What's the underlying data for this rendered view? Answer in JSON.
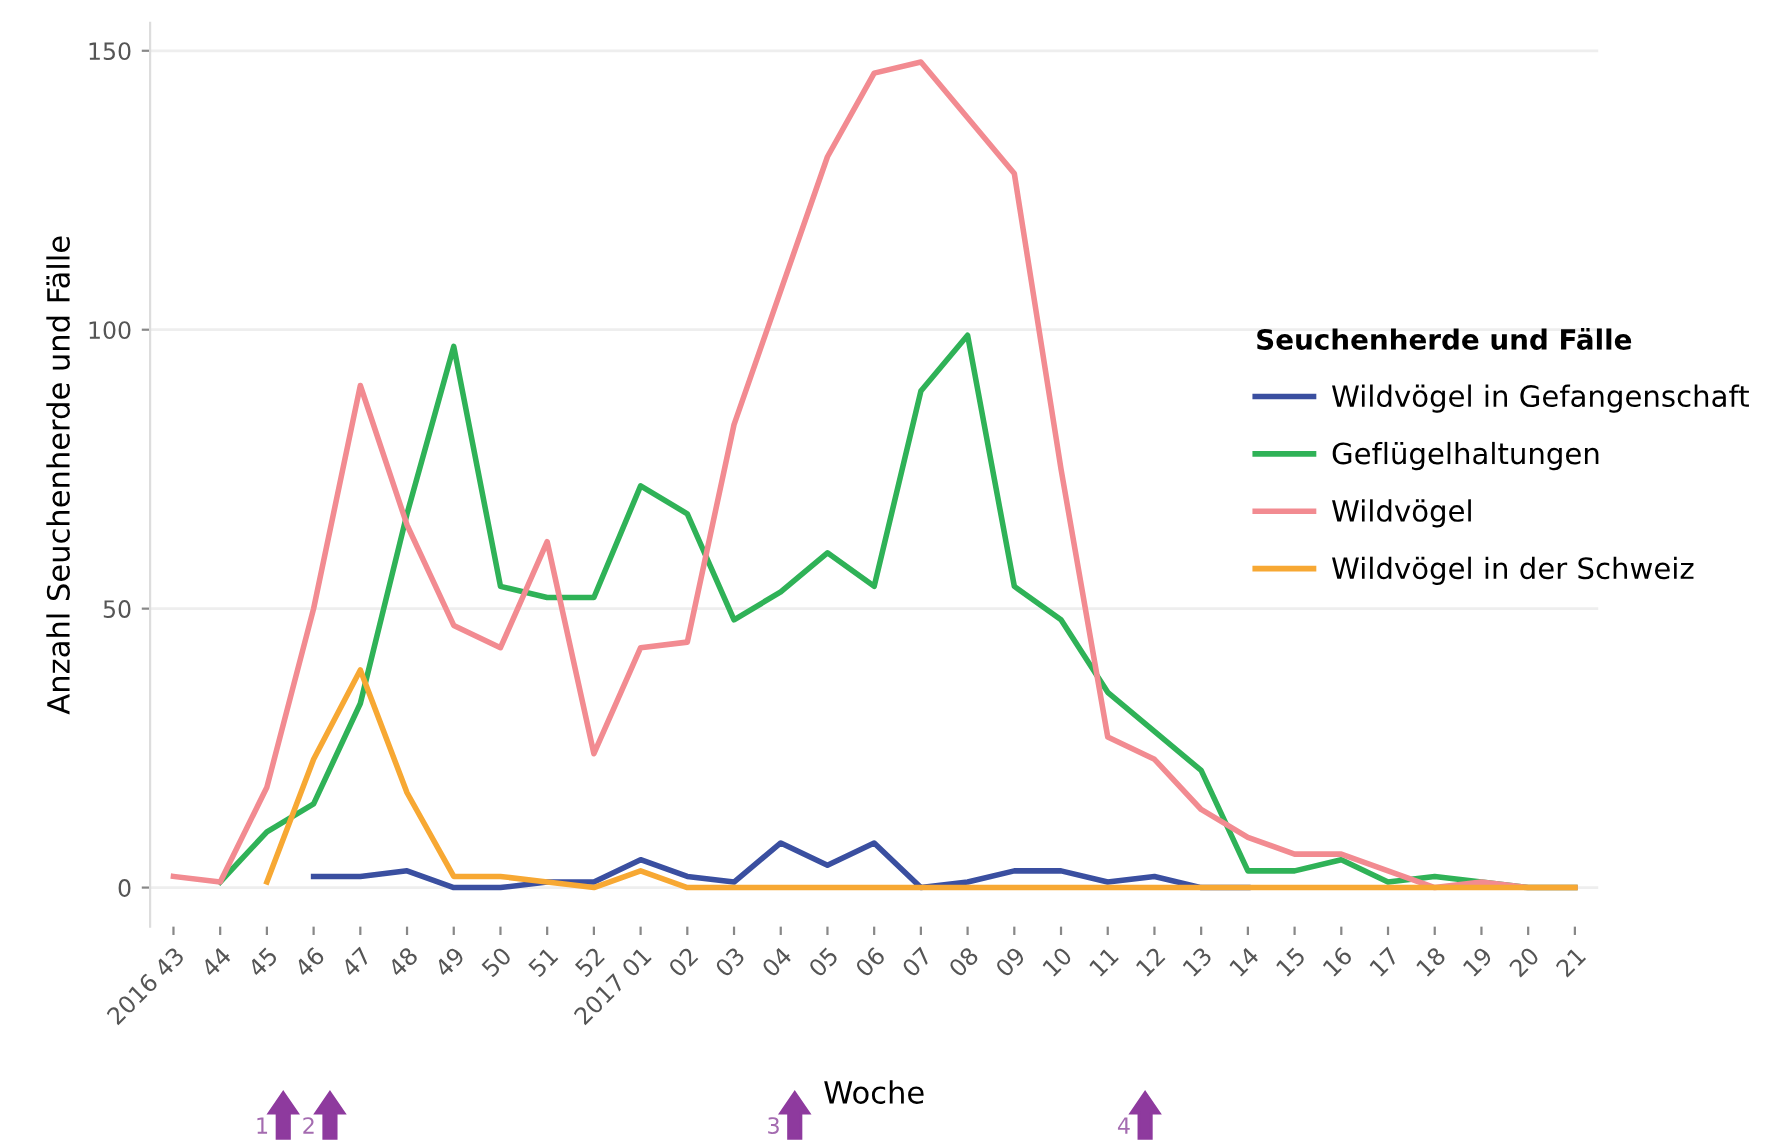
{
  "chart_data": {
    "type": "line",
    "xlabel": "Woche",
    "ylabel": "Anzahl Seuchenherde und Fälle",
    "legend_title": "Seuchenherde und Fälle",
    "categories": [
      "2016 43",
      "44",
      "45",
      "46",
      "47",
      "48",
      "49",
      "50",
      "51",
      "52",
      "2017 01",
      "02",
      "03",
      "04",
      "05",
      "06",
      "07",
      "08",
      "09",
      "10",
      "11",
      "12",
      "13",
      "14",
      "15",
      "16",
      "17",
      "18",
      "19",
      "20",
      "21"
    ],
    "series": [
      {
        "name": "Wildvögel in Gefangenschaft",
        "color": "#3a4fa0",
        "values": [
          null,
          null,
          null,
          2,
          2,
          3,
          0,
          0,
          1,
          1,
          5,
          2,
          1,
          8,
          4,
          8,
          0,
          1,
          3,
          3,
          1,
          2,
          0,
          0,
          null,
          null,
          null,
          null,
          null,
          null,
          null
        ]
      },
      {
        "name": "Geflügelhaltungen",
        "color": "#2fb257",
        "values": [
          null,
          1,
          10,
          15,
          33,
          67,
          97,
          54,
          52,
          52,
          72,
          67,
          48,
          53,
          60,
          54,
          89,
          99,
          54,
          48,
          35,
          28,
          21,
          3,
          3,
          5,
          1,
          2,
          1,
          0,
          0
        ]
      },
      {
        "name": "Wildvögel",
        "color": "#f28b91",
        "values": [
          2,
          1,
          18,
          50,
          90,
          65,
          47,
          43,
          62,
          24,
          43,
          44,
          83,
          107,
          131,
          146,
          148,
          138,
          128,
          75,
          27,
          23,
          14,
          9,
          6,
          6,
          3,
          0,
          1,
          0,
          0
        ]
      },
      {
        "name": "Wildvögel in der Schweiz",
        "color": "#f7a833",
        "values": [
          null,
          null,
          1,
          23,
          39,
          17,
          2,
          2,
          1,
          0,
          3,
          0,
          0,
          0,
          0,
          0,
          0,
          0,
          0,
          0,
          0,
          0,
          0,
          0,
          0,
          0,
          0,
          0,
          0,
          0,
          0
        ]
      }
    ],
    "ylim": [
      -7,
      155
    ],
    "yticks": [
      0,
      50,
      100,
      150
    ],
    "grid": "y",
    "legend": "right",
    "annotations": [
      "1",
      "2",
      "3",
      "4"
    ]
  }
}
